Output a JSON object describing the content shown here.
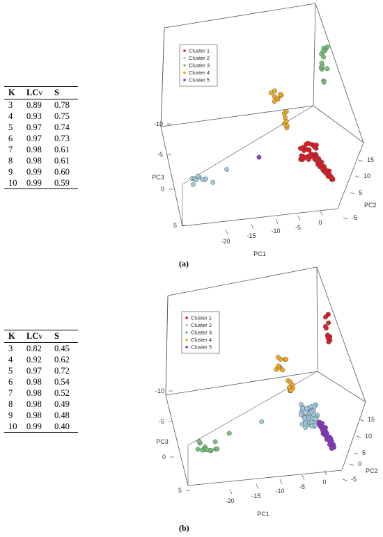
{
  "panel_a": {
    "caption": "(a)",
    "table": {
      "headers": [
        "K",
        "LC",
        "S"
      ],
      "header_sub": "V",
      "rows": [
        [
          "3",
          "0.89",
          "0.78"
        ],
        [
          "4",
          "0.93",
          "0.75"
        ],
        [
          "5",
          "0.97",
          "0.74"
        ],
        [
          "6",
          "0.97",
          "0.73"
        ],
        [
          "7",
          "0.98",
          "0.61"
        ],
        [
          "8",
          "0.98",
          "0.61"
        ],
        [
          "9",
          "0.99",
          "0.60"
        ],
        [
          "10",
          "0.99",
          "0.59"
        ]
      ]
    },
    "legend": [
      "Cluster 1",
      "Cluster 2",
      "Cluster 3",
      "Cluster 4",
      "Cluster 5"
    ],
    "axis_labels": {
      "pc1": "PC1",
      "pc2": "PC2",
      "pc3": "PC3"
    },
    "ticks_pc1": [
      "-20",
      "-15",
      "-10",
      "-5",
      "0"
    ],
    "ticks_pc2": [
      "15",
      "10",
      "5",
      "-5"
    ],
    "ticks_pc3": [
      "-10",
      "-5",
      "0",
      "5"
    ]
  },
  "panel_b": {
    "caption": "(b)",
    "table": {
      "headers": [
        "K",
        "LC",
        "S"
      ],
      "header_sub": "V",
      "rows": [
        [
          "3",
          "0.82",
          "0.45"
        ],
        [
          "4",
          "0.92",
          "0.62"
        ],
        [
          "5",
          "0.97",
          "0.72"
        ],
        [
          "6",
          "0.98",
          "0.54"
        ],
        [
          "7",
          "0.98",
          "0.52"
        ],
        [
          "8",
          "0.98",
          "0.49"
        ],
        [
          "9",
          "0.98",
          "0.48"
        ],
        [
          "10",
          "0.99",
          "0.40"
        ]
      ]
    },
    "legend": [
      "Cluster 1",
      "Cluster 2",
      "Cluster 3",
      "Cluster 4",
      "Cluster 5"
    ],
    "axis_labels": {
      "pc1": "PC1",
      "pc2": "PC2",
      "pc3": "PC3"
    },
    "ticks_pc1": [
      "-20",
      "-15",
      "-10",
      "-5",
      "0"
    ],
    "ticks_pc2": [
      "15",
      "10",
      "5",
      "0",
      "-5"
    ],
    "ticks_pc3": [
      "-10",
      "-5",
      "0",
      "5"
    ]
  },
  "colors": {
    "cluster_1": "#e0141c",
    "cluster_2": "#9cc8dc",
    "cluster_3": "#6cc070",
    "cluster_4": "#f0a418",
    "cluster_5": "#8a2fc8",
    "box_line": "#555555"
  },
  "chart_data": [
    {
      "type": "scatter",
      "panel": "a",
      "dimensions": "3D",
      "xlabel": "PC1",
      "ylabel": "PC2",
      "zlabel": "PC3",
      "series": [
        {
          "name": "Cluster 1",
          "color": "#e0141c",
          "centroid": {
            "pc1": -1,
            "pc2": 8,
            "pc3": -4
          },
          "approx_points": 80
        },
        {
          "name": "Cluster 2",
          "color": "#9cc8dc",
          "centroid": {
            "pc1": -20,
            "pc2": -2,
            "pc3": 0
          },
          "approx_points": 12
        },
        {
          "name": "Cluster 3",
          "color": "#6cc070",
          "centroid": {
            "pc1": -2,
            "pc2": 14,
            "pc3": -14
          },
          "approx_points": 14
        },
        {
          "name": "Cluster 4",
          "color": "#f0a418",
          "centroid": {
            "pc1": -11,
            "pc2": 5,
            "pc3": -12
          },
          "approx_points": 16
        },
        {
          "name": "Cluster 5",
          "color": "#8a2fc8",
          "centroid": {
            "pc1": -13,
            "pc2": -1,
            "pc3": -3
          },
          "approx_points": 1
        }
      ]
    },
    {
      "type": "scatter",
      "panel": "b",
      "dimensions": "3D",
      "xlabel": "PC1",
      "ylabel": "PC2",
      "zlabel": "PC3",
      "series": [
        {
          "name": "Cluster 1",
          "color": "#e0141c",
          "centroid": {
            "pc1": -2,
            "pc2": 14,
            "pc3": -14
          },
          "approx_points": 14
        },
        {
          "name": "Cluster 2",
          "color": "#9cc8dc",
          "centroid": {
            "pc1": -3,
            "pc2": 6,
            "pc3": -4
          },
          "approx_points": 45
        },
        {
          "name": "Cluster 3",
          "color": "#6cc070",
          "centroid": {
            "pc1": -20,
            "pc2": -2,
            "pc3": 0
          },
          "approx_points": 14
        },
        {
          "name": "Cluster 4",
          "color": "#f0a418",
          "centroid": {
            "pc1": -11,
            "pc2": 5,
            "pc3": -12
          },
          "approx_points": 16
        },
        {
          "name": "Cluster 5",
          "color": "#8a2fc8",
          "centroid": {
            "pc1": 0,
            "pc2": 9,
            "pc3": -3
          },
          "approx_points": 45
        }
      ]
    }
  ]
}
